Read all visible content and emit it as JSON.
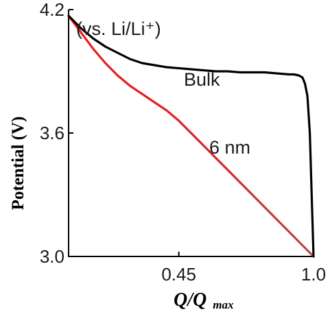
{
  "chart_data": {
    "type": "line",
    "title": "",
    "annotation_ref": "(vs. Li/Li⁺)",
    "xlabel": "Q/Q",
    "xlabel_subscript": "max",
    "ylabel": "Potential (V)",
    "xlim": [
      0.0,
      1.0
    ],
    "ylim": [
      3.0,
      4.2
    ],
    "x_ticks": [
      0.45,
      1.0
    ],
    "x_tick_labels": [
      "0.45",
      "1.0"
    ],
    "y_ticks": [
      3.0,
      3.6,
      4.2
    ],
    "y_tick_labels": [
      "3.0",
      "3.6",
      "4.2"
    ],
    "grid": false,
    "legend": "none",
    "series": [
      {
        "name": "Bulk",
        "color": "#000000",
        "x": [
          0.0,
          0.05,
          0.1,
          0.15,
          0.2,
          0.25,
          0.3,
          0.35,
          0.4,
          0.45,
          0.5,
          0.55,
          0.6,
          0.65,
          0.7,
          0.75,
          0.8,
          0.85,
          0.9,
          0.92,
          0.94,
          0.955,
          0.965,
          0.975,
          0.985,
          0.99,
          0.995,
          1.0
        ],
        "y": [
          4.17,
          4.11,
          4.06,
          4.02,
          3.99,
          3.96,
          3.94,
          3.93,
          3.92,
          3.915,
          3.91,
          3.905,
          3.9,
          3.9,
          3.895,
          3.895,
          3.895,
          3.89,
          3.885,
          3.885,
          3.88,
          3.87,
          3.84,
          3.78,
          3.6,
          3.4,
          3.2,
          3.0
        ]
      },
      {
        "name": "6 nm",
        "color": "#e02020",
        "x": [
          0.0,
          0.05,
          0.1,
          0.15,
          0.2,
          0.25,
          0.3,
          0.35,
          0.4,
          0.45,
          0.5,
          0.55,
          0.6,
          0.65,
          0.7,
          0.75,
          0.8,
          0.85,
          0.9,
          0.95,
          1.0
        ],
        "y": [
          4.17,
          4.09,
          4.01,
          3.94,
          3.88,
          3.83,
          3.79,
          3.75,
          3.71,
          3.66,
          3.6,
          3.54,
          3.48,
          3.42,
          3.36,
          3.3,
          3.24,
          3.18,
          3.12,
          3.06,
          3.0
        ]
      }
    ]
  }
}
